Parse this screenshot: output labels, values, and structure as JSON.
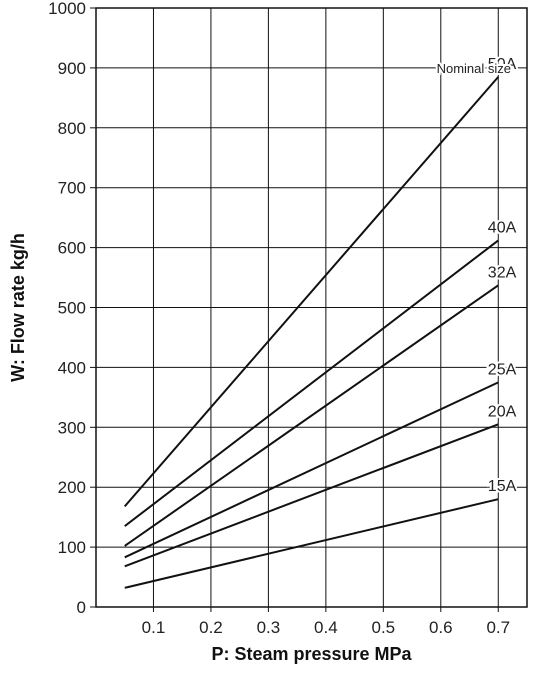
{
  "chart_data": {
    "type": "line",
    "xlabel": "P: Steam pressure MPa",
    "ylabel": "W: Flow rate kg/h",
    "xlim": [
      0,
      0.75
    ],
    "ylim": [
      0,
      1000
    ],
    "xticks": [
      "0.1",
      "0.2",
      "0.3",
      "0.4",
      "0.5",
      "0.6",
      "0.7"
    ],
    "yticks": [
      "0",
      "100",
      "200",
      "300",
      "400",
      "500",
      "600",
      "700",
      "800",
      "900",
      "1000"
    ],
    "grid": true,
    "legend_title": "Nominal size",
    "series": [
      {
        "name": "50A",
        "x": [
          0.05,
          0.7
        ],
        "y": [
          168,
          885
        ]
      },
      {
        "name": "40A",
        "x": [
          0.05,
          0.7
        ],
        "y": [
          135,
          612
        ]
      },
      {
        "name": "32A",
        "x": [
          0.05,
          0.7
        ],
        "y": [
          102,
          537
        ]
      },
      {
        "name": "25A",
        "x": [
          0.05,
          0.7
        ],
        "y": [
          83,
          375
        ]
      },
      {
        "name": "20A",
        "x": [
          0.05,
          0.7
        ],
        "y": [
          68,
          305
        ]
      },
      {
        "name": "15A",
        "x": [
          0.05,
          0.7
        ],
        "y": [
          32,
          180
        ]
      }
    ]
  }
}
